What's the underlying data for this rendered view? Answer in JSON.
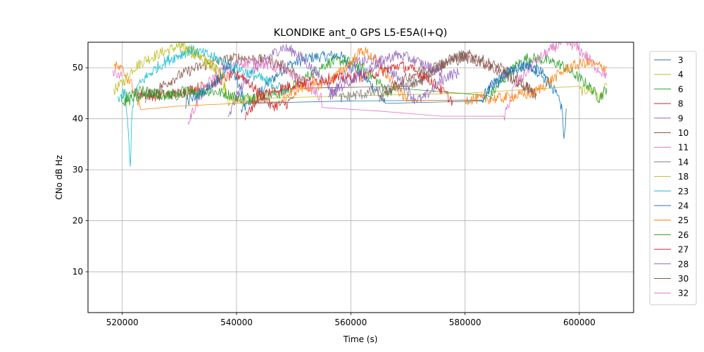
{
  "chart_data": {
    "type": "line",
    "title": "KLONDIKE ant_0 GPS L5-E5A(I+Q)",
    "xlabel": "Time (s)",
    "ylabel": "CNo dB Hz",
    "xlim": [
      514000,
      609500
    ],
    "ylim": [
      2,
      55
    ],
    "xticks": [
      520000,
      540000,
      560000,
      580000,
      600000
    ],
    "yticks": [
      10,
      20,
      30,
      40,
      50
    ],
    "grid": true,
    "legend_position": "right-outside",
    "series": [
      {
        "name": "3",
        "color": "#1f77b4",
        "points": [
          [
            540800,
            41.5
          ],
          [
            543000,
            44
          ],
          [
            546000,
            47.5
          ],
          [
            549000,
            50.5
          ],
          [
            553000,
            52
          ],
          [
            558000,
            52.5
          ],
          [
            560000,
            50.5
          ],
          [
            562500,
            48
          ],
          [
            564500,
            45.5
          ],
          [
            566000,
            43
          ],
          [
            583000,
            44
          ],
          [
            585000,
            47
          ],
          [
            588000,
            49.5
          ],
          [
            591000,
            50.5
          ],
          [
            593000,
            49.5
          ],
          [
            595000,
            47
          ],
          [
            597000,
            42
          ],
          [
            597300,
            35.2
          ],
          [
            597700,
            42
          ]
        ]
      },
      {
        "name": "4",
        "color": "#bcbd22",
        "points": [
          [
            518500,
            45.5
          ],
          [
            520000,
            47
          ],
          [
            522000,
            50
          ],
          [
            524000,
            51.5
          ],
          [
            527000,
            53
          ],
          [
            530000,
            54.3
          ],
          [
            532000,
            53.5
          ],
          [
            534000,
            52
          ],
          [
            536000,
            50.5
          ],
          [
            537000,
            48.5
          ],
          [
            538000,
            46
          ],
          [
            538600,
            43.5
          ],
          [
            544000,
            44
          ],
          [
            560000,
            44.5
          ],
          [
            580000,
            45
          ],
          [
            600000,
            45.5
          ],
          [
            602800,
            45.8
          ],
          [
            603200,
            43.5
          ],
          [
            604800,
            46.5
          ]
        ]
      },
      {
        "name": "6",
        "color": "#2ca02c",
        "points": [
          [
            519800,
            44
          ],
          [
            521500,
            44.5
          ],
          [
            523000,
            45.5
          ],
          [
            526000,
            45
          ],
          [
            529000,
            44.5
          ],
          [
            532000,
            45
          ],
          [
            535000,
            45.5
          ],
          [
            538000,
            45
          ],
          [
            541000,
            44
          ],
          [
            544000,
            44.5
          ],
          [
            548000,
            45
          ],
          [
            552000,
            48
          ],
          [
            556000,
            51
          ],
          [
            559000,
            51.5
          ],
          [
            562000,
            50
          ],
          [
            565000,
            47
          ],
          [
            566800,
            45
          ],
          [
            568000,
            46
          ],
          [
            584000,
            44
          ],
          [
            587000,
            48
          ],
          [
            589000,
            50.5
          ],
          [
            591000,
            52
          ],
          [
            594000,
            51.5
          ],
          [
            597000,
            50.5
          ],
          [
            600000,
            48
          ],
          [
            602000,
            46
          ],
          [
            603500,
            44
          ],
          [
            604800,
            46
          ]
        ]
      },
      {
        "name": "8",
        "color": "#d62728",
        "points": [
          [
            522000,
            45
          ],
          [
            526000,
            44.5
          ],
          [
            530000,
            45
          ],
          [
            533000,
            46
          ],
          [
            536000,
            47
          ],
          [
            539000,
            48.5
          ],
          [
            541000,
            48.5
          ],
          [
            543000,
            46
          ],
          [
            545000,
            44
          ],
          [
            546000,
            42.5
          ],
          [
            549000,
            43
          ],
          [
            550000,
            44.5
          ]
        ]
      },
      {
        "name": "9",
        "color": "#9467bd",
        "points": [
          [
            538500,
            39.5
          ],
          [
            539500,
            43
          ],
          [
            541000,
            46.5
          ],
          [
            543000,
            49.5
          ],
          [
            545500,
            52
          ],
          [
            548000,
            54
          ],
          [
            550500,
            53
          ],
          [
            553000,
            50
          ],
          [
            555500,
            47.5
          ],
          [
            557000,
            45
          ],
          [
            558500,
            48
          ],
          [
            561000,
            51
          ],
          [
            564000,
            51.5
          ],
          [
            566500,
            50
          ],
          [
            569000,
            47
          ],
          [
            571000,
            44
          ],
          [
            572500,
            43.8
          ],
          [
            574500,
            46
          ],
          [
            577000,
            48.5
          ],
          [
            579000,
            49
          ]
        ]
      },
      {
        "name": "10",
        "color": "#8c564b",
        "points": [
          [
            524000,
            44
          ],
          [
            527000,
            46.5
          ],
          [
            530000,
            48.5
          ],
          [
            533000,
            50
          ],
          [
            536000,
            51
          ],
          [
            540000,
            52
          ],
          [
            545000,
            51.5
          ],
          [
            548000,
            50.5
          ],
          [
            550000,
            49
          ],
          [
            551500,
            46
          ],
          [
            570000,
            46
          ],
          [
            573000,
            48
          ],
          [
            575000,
            50
          ],
          [
            578000,
            52
          ],
          [
            581000,
            52.5
          ],
          [
            584000,
            51
          ],
          [
            587000,
            49.5
          ],
          [
            589000,
            48
          ],
          [
            591000,
            46
          ],
          [
            592500,
            44.5
          ]
        ]
      },
      {
        "name": "11",
        "color": "#e377c2",
        "points": [
          [
            531500,
            39.2
          ],
          [
            533000,
            43
          ],
          [
            535000,
            47
          ],
          [
            538000,
            50
          ],
          [
            541000,
            51
          ],
          [
            544000,
            51
          ],
          [
            547000,
            50
          ],
          [
            550000,
            48.5
          ],
          [
            552000,
            47
          ],
          [
            553500,
            45.5
          ],
          [
            554800,
            44
          ],
          [
            555000,
            42.2
          ],
          [
            565000,
            41.5
          ],
          [
            576000,
            40.5
          ],
          [
            586800,
            40
          ],
          [
            588500,
            46
          ],
          [
            592000,
            51
          ],
          [
            595000,
            53.5
          ],
          [
            597000,
            55
          ],
          [
            599000,
            54.5
          ],
          [
            601500,
            52
          ],
          [
            603000,
            50
          ],
          [
            604800,
            48.5
          ]
        ]
      },
      {
        "name": "14",
        "color": "#7f7f7f",
        "points": [
          [
            558000,
            44
          ],
          [
            560000,
            44.5
          ],
          [
            563000,
            45
          ],
          [
            566000,
            45.5
          ],
          [
            569000,
            46.5
          ],
          [
            572000,
            47.5
          ],
          [
            575000,
            50
          ],
          [
            577000,
            51.5
          ],
          [
            579000,
            52.5
          ],
          [
            580500,
            52
          ]
        ]
      },
      {
        "name": "18",
        "color": "#bcbd22",
        "points": [
          [
            530000,
            54
          ],
          [
            532000,
            53
          ],
          [
            534000,
            51.5
          ],
          [
            536000,
            50
          ],
          [
            537800,
            48
          ],
          [
            538300,
            44
          ]
        ]
      },
      {
        "name": "23",
        "color": "#17becf",
        "points": [
          [
            519200,
            44
          ],
          [
            520500,
            45
          ],
          [
            521000,
            38
          ],
          [
            521400,
            30.3
          ],
          [
            521700,
            42
          ],
          [
            522500,
            46
          ],
          [
            524000,
            48
          ],
          [
            526000,
            50
          ],
          [
            528000,
            51.5
          ],
          [
            530000,
            52.5
          ],
          [
            532000,
            53.5
          ],
          [
            535000,
            52.5
          ],
          [
            538000,
            51
          ],
          [
            541000,
            49.5
          ],
          [
            544000,
            48
          ],
          [
            547000,
            46.5
          ],
          [
            549000,
            45
          ]
        ]
      },
      {
        "name": "24",
        "color": "#1f77b4",
        "points": [
          [
            531000,
            43
          ],
          [
            533000,
            44.5
          ],
          [
            535000,
            46
          ],
          [
            537000,
            48
          ],
          [
            538500,
            50.5
          ],
          [
            539500,
            49
          ],
          [
            540500,
            46
          ],
          [
            541500,
            43
          ],
          [
            560000,
            43.5
          ],
          [
            583000,
            44
          ],
          [
            585000,
            46.5
          ],
          [
            587000,
            48.5
          ],
          [
            589000,
            50
          ],
          [
            591000,
            50.5
          ],
          [
            593000,
            49
          ],
          [
            595000,
            46.5
          ]
        ]
      },
      {
        "name": "25",
        "color": "#ff7f0e",
        "points": [
          [
            518500,
            50.5
          ],
          [
            520000,
            49.5
          ],
          [
            521500,
            47
          ],
          [
            522500,
            44
          ],
          [
            523200,
            41.8
          ],
          [
            530000,
            42.5
          ],
          [
            540000,
            43
          ],
          [
            548000,
            44
          ],
          [
            551000,
            46
          ],
          [
            554000,
            46.5
          ],
          [
            557000,
            48
          ],
          [
            560000,
            51
          ],
          [
            562000,
            53.5
          ],
          [
            564000,
            52
          ],
          [
            566000,
            49
          ],
          [
            568000,
            46
          ],
          [
            570000,
            43.5
          ],
          [
            580000,
            43.8
          ],
          [
            586000,
            44
          ],
          [
            592000,
            45
          ],
          [
            595000,
            47.5
          ],
          [
            598000,
            50
          ],
          [
            601000,
            51
          ],
          [
            604800,
            50
          ]
        ]
      },
      {
        "name": "26",
        "color": "#2ca02c",
        "points": [
          [
            520000,
            43
          ],
          [
            522000,
            44
          ],
          [
            525000,
            45
          ],
          [
            528000,
            44.5
          ],
          [
            531000,
            45.5
          ],
          [
            534000,
            45
          ]
        ]
      },
      {
        "name": "27",
        "color": "#d62728",
        "points": [
          [
            541500,
            40
          ],
          [
            543000,
            43
          ],
          [
            545000,
            45
          ],
          [
            548000,
            46
          ],
          [
            551000,
            47
          ],
          [
            554000,
            47.5
          ],
          [
            557000,
            48
          ],
          [
            560000,
            48
          ],
          [
            563000,
            48.5
          ],
          [
            566000,
            49.5
          ],
          [
            568500,
            50.5
          ],
          [
            571000,
            49.5
          ],
          [
            574000,
            47.5
          ],
          [
            576000,
            45.5
          ],
          [
            577800,
            43.5
          ]
        ]
      },
      {
        "name": "28",
        "color": "#9467bd",
        "points": [
          [
            556000,
            44
          ],
          [
            558000,
            46
          ],
          [
            560500,
            48
          ],
          [
            563000,
            49.5
          ],
          [
            565500,
            51.5
          ],
          [
            568000,
            52.5
          ],
          [
            570000,
            52
          ],
          [
            572000,
            51
          ],
          [
            574000,
            50
          ],
          [
            576000,
            49
          ]
        ]
      },
      {
        "name": "30",
        "color": "#8c564b",
        "points": [
          [
            565000,
            44
          ],
          [
            567000,
            46
          ],
          [
            569000,
            47.5
          ],
          [
            571500,
            49
          ],
          [
            574000,
            50
          ],
          [
            577000,
            51
          ],
          [
            580000,
            52
          ],
          [
            583000,
            51
          ],
          [
            585500,
            49.5
          ],
          [
            588000,
            48
          ],
          [
            590000,
            46.5
          ],
          [
            592000,
            45.5
          ]
        ]
      },
      {
        "name": "32",
        "color": "#e377c2",
        "points": [
          [
            518300,
            48.5
          ],
          [
            519000,
            49
          ],
          [
            520000,
            48.5
          ]
        ]
      }
    ]
  }
}
